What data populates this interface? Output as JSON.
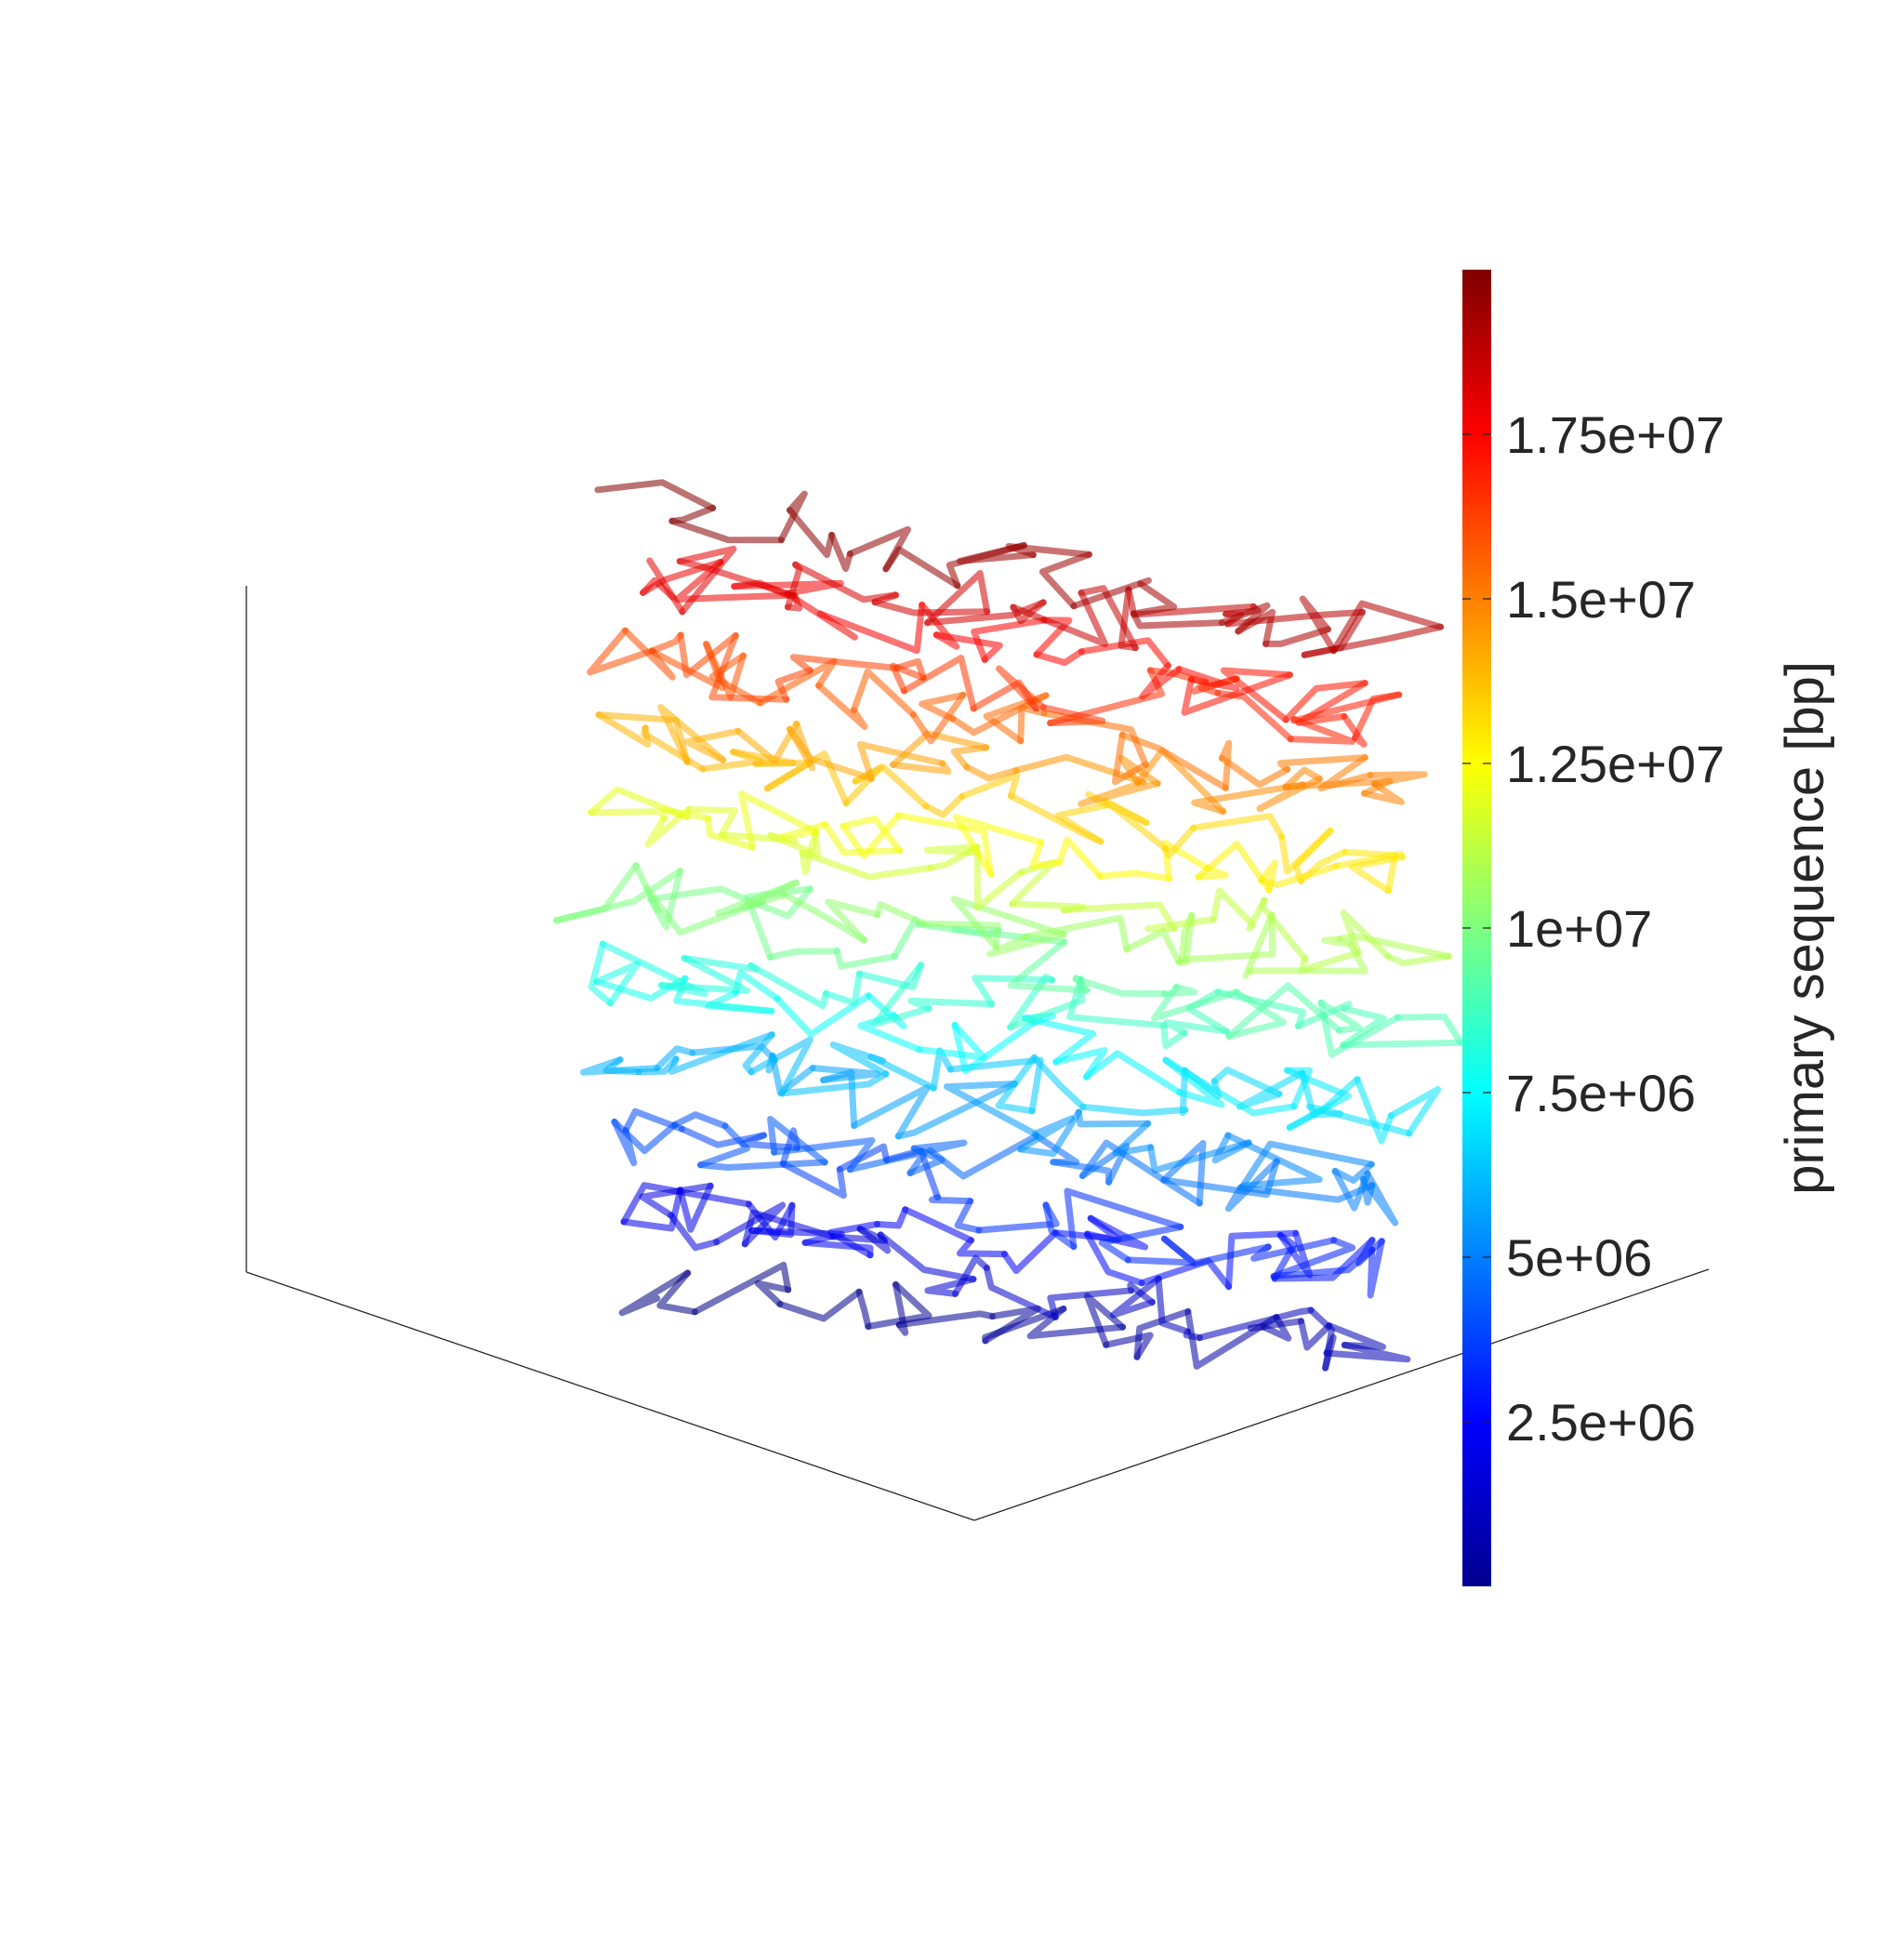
{
  "chart_data": {
    "type": "line",
    "subtype": "3d-polymer-trace",
    "colormap": "jet",
    "line_opacity": 0.55,
    "color_variable": "primary sequence [bp]",
    "color_range": [
      0,
      20000000
    ],
    "colorbar": {
      "label": "primary sequence [bp]",
      "ticks": [
        2500000,
        5000000,
        7500000,
        10000000,
        12500000,
        15000000,
        17500000
      ],
      "tick_labels": [
        "2.5e+06",
        "5e+06",
        "7.5e+06",
        "1e+07",
        "1.25e+07",
        "1.5e+07",
        "1.75e+07"
      ],
      "location": "right"
    },
    "layers": 20,
    "bins_per_layer": 40,
    "grid": false,
    "box": "three-edge corner frame",
    "title": "",
    "xlabel": "",
    "ylabel": "",
    "zlabel": ""
  }
}
